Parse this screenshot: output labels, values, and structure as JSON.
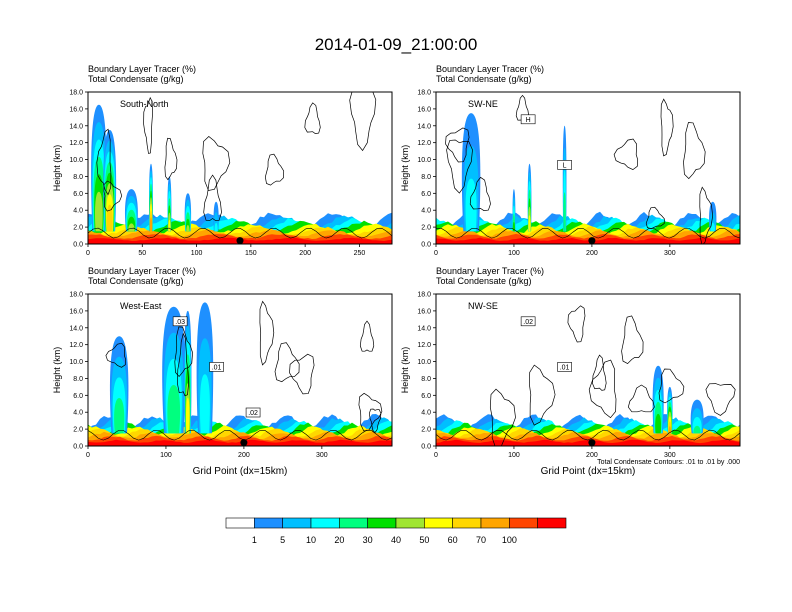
{
  "title": "2014-01-09_21:00:00",
  "colors": [
    "#ffffff",
    "#1e90ff",
    "#00bfff",
    "#00ffff",
    "#00ff7f",
    "#00e000",
    "#a0e632",
    "#ffff00",
    "#ffd700",
    "#ffa500",
    "#ff4500",
    "#ff0000"
  ],
  "colorbar": {
    "labels": [
      "1",
      "5",
      "10",
      "20",
      "30",
      "40",
      "50",
      "60",
      "70",
      "100"
    ]
  },
  "chart_data": [
    {
      "type": "heatmap",
      "panel_label": "South-North",
      "header_lines": [
        "Boundary Layer Tracer   (%)",
        "Total Condensate   (g/kg)"
      ],
      "xlabel": "",
      "ylabel": "Height (km)",
      "xlim": [
        0,
        280
      ],
      "ylim": [
        0,
        18
      ],
      "xticks": [
        "0",
        "50",
        "100",
        "150",
        "200",
        "250"
      ],
      "xtick_values": [
        0,
        50,
        100,
        150,
        200,
        250
      ],
      "yticks": [
        "0.0",
        "2.0",
        "4.0",
        "6.0",
        "8.0",
        "10.0",
        "12.0",
        "14.0",
        "16.0",
        "18.0"
      ],
      "marker_x": 140,
      "boxes": [],
      "plumes": [
        {
          "x": 10,
          "top": 16.5,
          "w": 12,
          "level": 5
        },
        {
          "x": 20,
          "top": 13.5,
          "w": 10,
          "level": 7
        },
        {
          "x": 40,
          "top": 6.5,
          "w": 10,
          "level": 5
        },
        {
          "x": 58,
          "top": 9.5,
          "w": 3,
          "level": 8
        },
        {
          "x": 75,
          "top": 8.0,
          "w": 3,
          "level": 6
        },
        {
          "x": 92,
          "top": 6.0,
          "w": 5,
          "level": 5
        },
        {
          "x": 118,
          "top": 5.0,
          "w": 4,
          "level": 2
        }
      ]
    },
    {
      "type": "heatmap",
      "panel_label": "SW-NE",
      "header_lines": [
        "Boundary Layer Tracer   (%)",
        "Total Condensate   (g/kg)"
      ],
      "xlabel": "",
      "ylabel": "Height (km)",
      "xlim": [
        0,
        390
      ],
      "ylim": [
        0,
        18
      ],
      "xticks": [
        "0",
        "100",
        "200",
        "300"
      ],
      "xtick_values": [
        0,
        100,
        200,
        300
      ],
      "yticks": [
        "0.0",
        "2.0",
        "4.0",
        "6.0",
        "8.0",
        "10.0",
        "12.0",
        "14.0",
        "16.0",
        "18.0"
      ],
      "marker_x": 200,
      "boxes": [
        "H",
        "L"
      ],
      "plumes": [
        {
          "x": 45,
          "top": 15.5,
          "w": 20,
          "level": 2
        },
        {
          "x": 120,
          "top": 9.5,
          "w": 4,
          "level": 6
        },
        {
          "x": 165,
          "top": 14.0,
          "w": 4,
          "level": 3
        },
        {
          "x": 100,
          "top": 6.5,
          "w": 3,
          "level": 4
        },
        {
          "x": 355,
          "top": 5.0,
          "w": 8,
          "level": 2
        }
      ]
    },
    {
      "type": "heatmap",
      "panel_label": "West-East",
      "header_lines": [
        "Boundary Layer Tracer   (%)",
        "Total Condensate   (g/kg)"
      ],
      "xlabel": "Grid Point (dx=15km)",
      "ylabel": "Height (km)",
      "xlim": [
        0,
        390
      ],
      "ylim": [
        0,
        18
      ],
      "xticks": [
        "0",
        "100",
        "200",
        "300"
      ],
      "xtick_values": [
        0,
        100,
        200,
        300
      ],
      "yticks": [
        "0.0",
        "2.0",
        "4.0",
        "6.0",
        "8.0",
        "10.0",
        "12.0",
        "14.0",
        "16.0",
        "18.0"
      ],
      "marker_x": 200,
      "boxes": [
        ".03",
        ".01",
        ".02"
      ],
      "plumes": [
        {
          "x": 40,
          "top": 13.0,
          "w": 20,
          "level": 3
        },
        {
          "x": 110,
          "top": 16.5,
          "w": 25,
          "level": 3
        },
        {
          "x": 128,
          "top": 16.0,
          "w": 8,
          "level": 6
        },
        {
          "x": 150,
          "top": 17.0,
          "w": 18,
          "level": 2
        }
      ]
    },
    {
      "type": "heatmap",
      "panel_label": "NW-SE",
      "header_lines": [
        "Boundary Layer Tracer   (%)",
        "Total Condensate   (g/kg)"
      ],
      "xlabel": "Grid Point (dx=15km)",
      "ylabel": "Height (km)",
      "xlim": [
        0,
        390
      ],
      "ylim": [
        0,
        18
      ],
      "xticks": [
        "0",
        "100",
        "200",
        "300"
      ],
      "xtick_values": [
        0,
        100,
        200,
        300
      ],
      "yticks": [
        "0.0",
        "2.0",
        "4.0",
        "6.0",
        "8.0",
        "10.0",
        "12.0",
        "14.0",
        "16.0",
        "18.0"
      ],
      "marker_x": 200,
      "boxes": [
        ".02",
        ".01"
      ],
      "plumes": [
        {
          "x": 285,
          "top": 9.5,
          "w": 12,
          "level": 4
        },
        {
          "x": 300,
          "top": 7.0,
          "w": 6,
          "level": 8
        },
        {
          "x": 335,
          "top": 5.5,
          "w": 14,
          "level": 3
        }
      ],
      "contour_note": "Total Condensate Contours: .01 to .01 by .000"
    }
  ]
}
